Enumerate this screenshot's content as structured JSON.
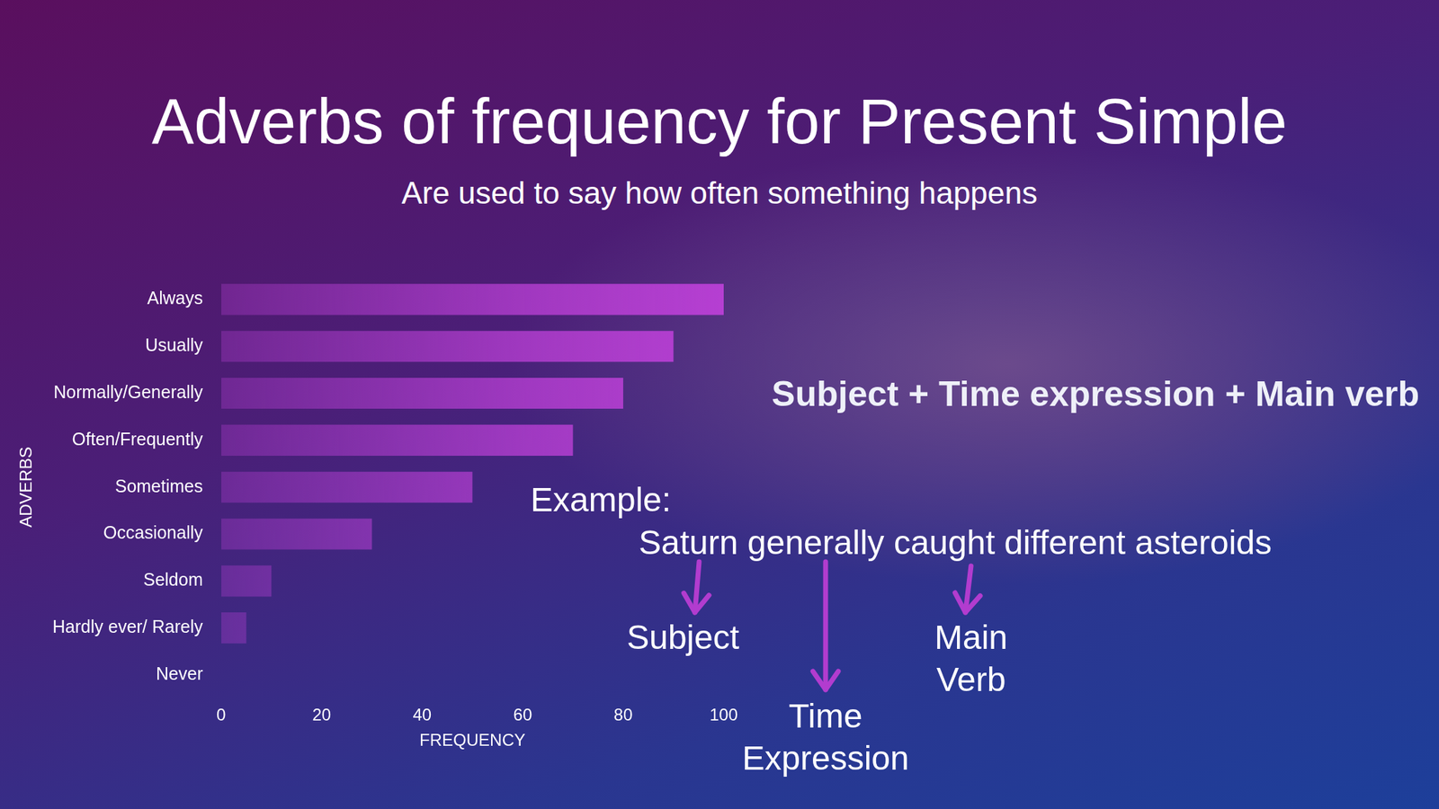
{
  "chart_data": {
    "type": "bar",
    "orientation": "horizontal",
    "title": "Adverbs of frequency  for Present Simple",
    "subtitle": "Are used to say how often something happens",
    "categories": [
      "Always",
      "Usually",
      "Normally/Generally",
      "Often/Frequently",
      "Sometimes",
      "Occasionally",
      "Seldom",
      "Hardly ever/ Rarely",
      "Never"
    ],
    "values": [
      100,
      90,
      80,
      70,
      50,
      30,
      10,
      5,
      0
    ],
    "color": "#b63fd2",
    "xlim": [
      0,
      100
    ],
    "xticks": [
      0,
      20,
      40,
      60,
      80,
      100
    ],
    "xlabel": "FREQUENCY",
    "ylabel": "ADVERBS",
    "grid": false
  },
  "diagram": {
    "formula": "Subject + Time expression + Main verb",
    "example_heading": "Example:",
    "sentence": "Saturn generally caught different asteroids",
    "parts": [
      {
        "label": "Subject"
      },
      {
        "label": "Time Expression"
      },
      {
        "label": "Main Verb"
      }
    ]
  }
}
